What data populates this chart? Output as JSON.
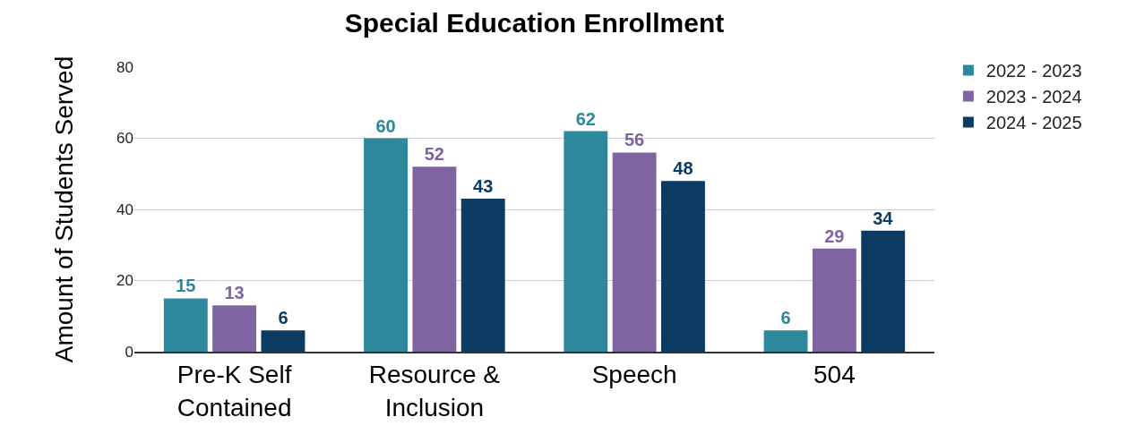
{
  "chart_data": {
    "type": "bar",
    "title": "Special Education Enrollment",
    "ylabel": "Amount of Students Served",
    "categories": [
      "Pre-K Self\nContained",
      "Resource &\nInclusion",
      "Speech",
      "504"
    ],
    "series": [
      {
        "name": "2022 - 2023",
        "color": "#2e889b",
        "values": [
          15,
          60,
          62,
          6
        ]
      },
      {
        "name": "2023 - 2024",
        "color": "#8064a2",
        "values": [
          13,
          52,
          56,
          29
        ]
      },
      {
        "name": "2024 - 2025",
        "color": "#0b3a62",
        "values": [
          6,
          43,
          48,
          34
        ]
      }
    ],
    "ylim": [
      0,
      80
    ],
    "yticks": [
      0,
      20,
      40,
      60,
      80
    ],
    "grid": "y",
    "legend": "top right",
    "data_labels": true
  }
}
